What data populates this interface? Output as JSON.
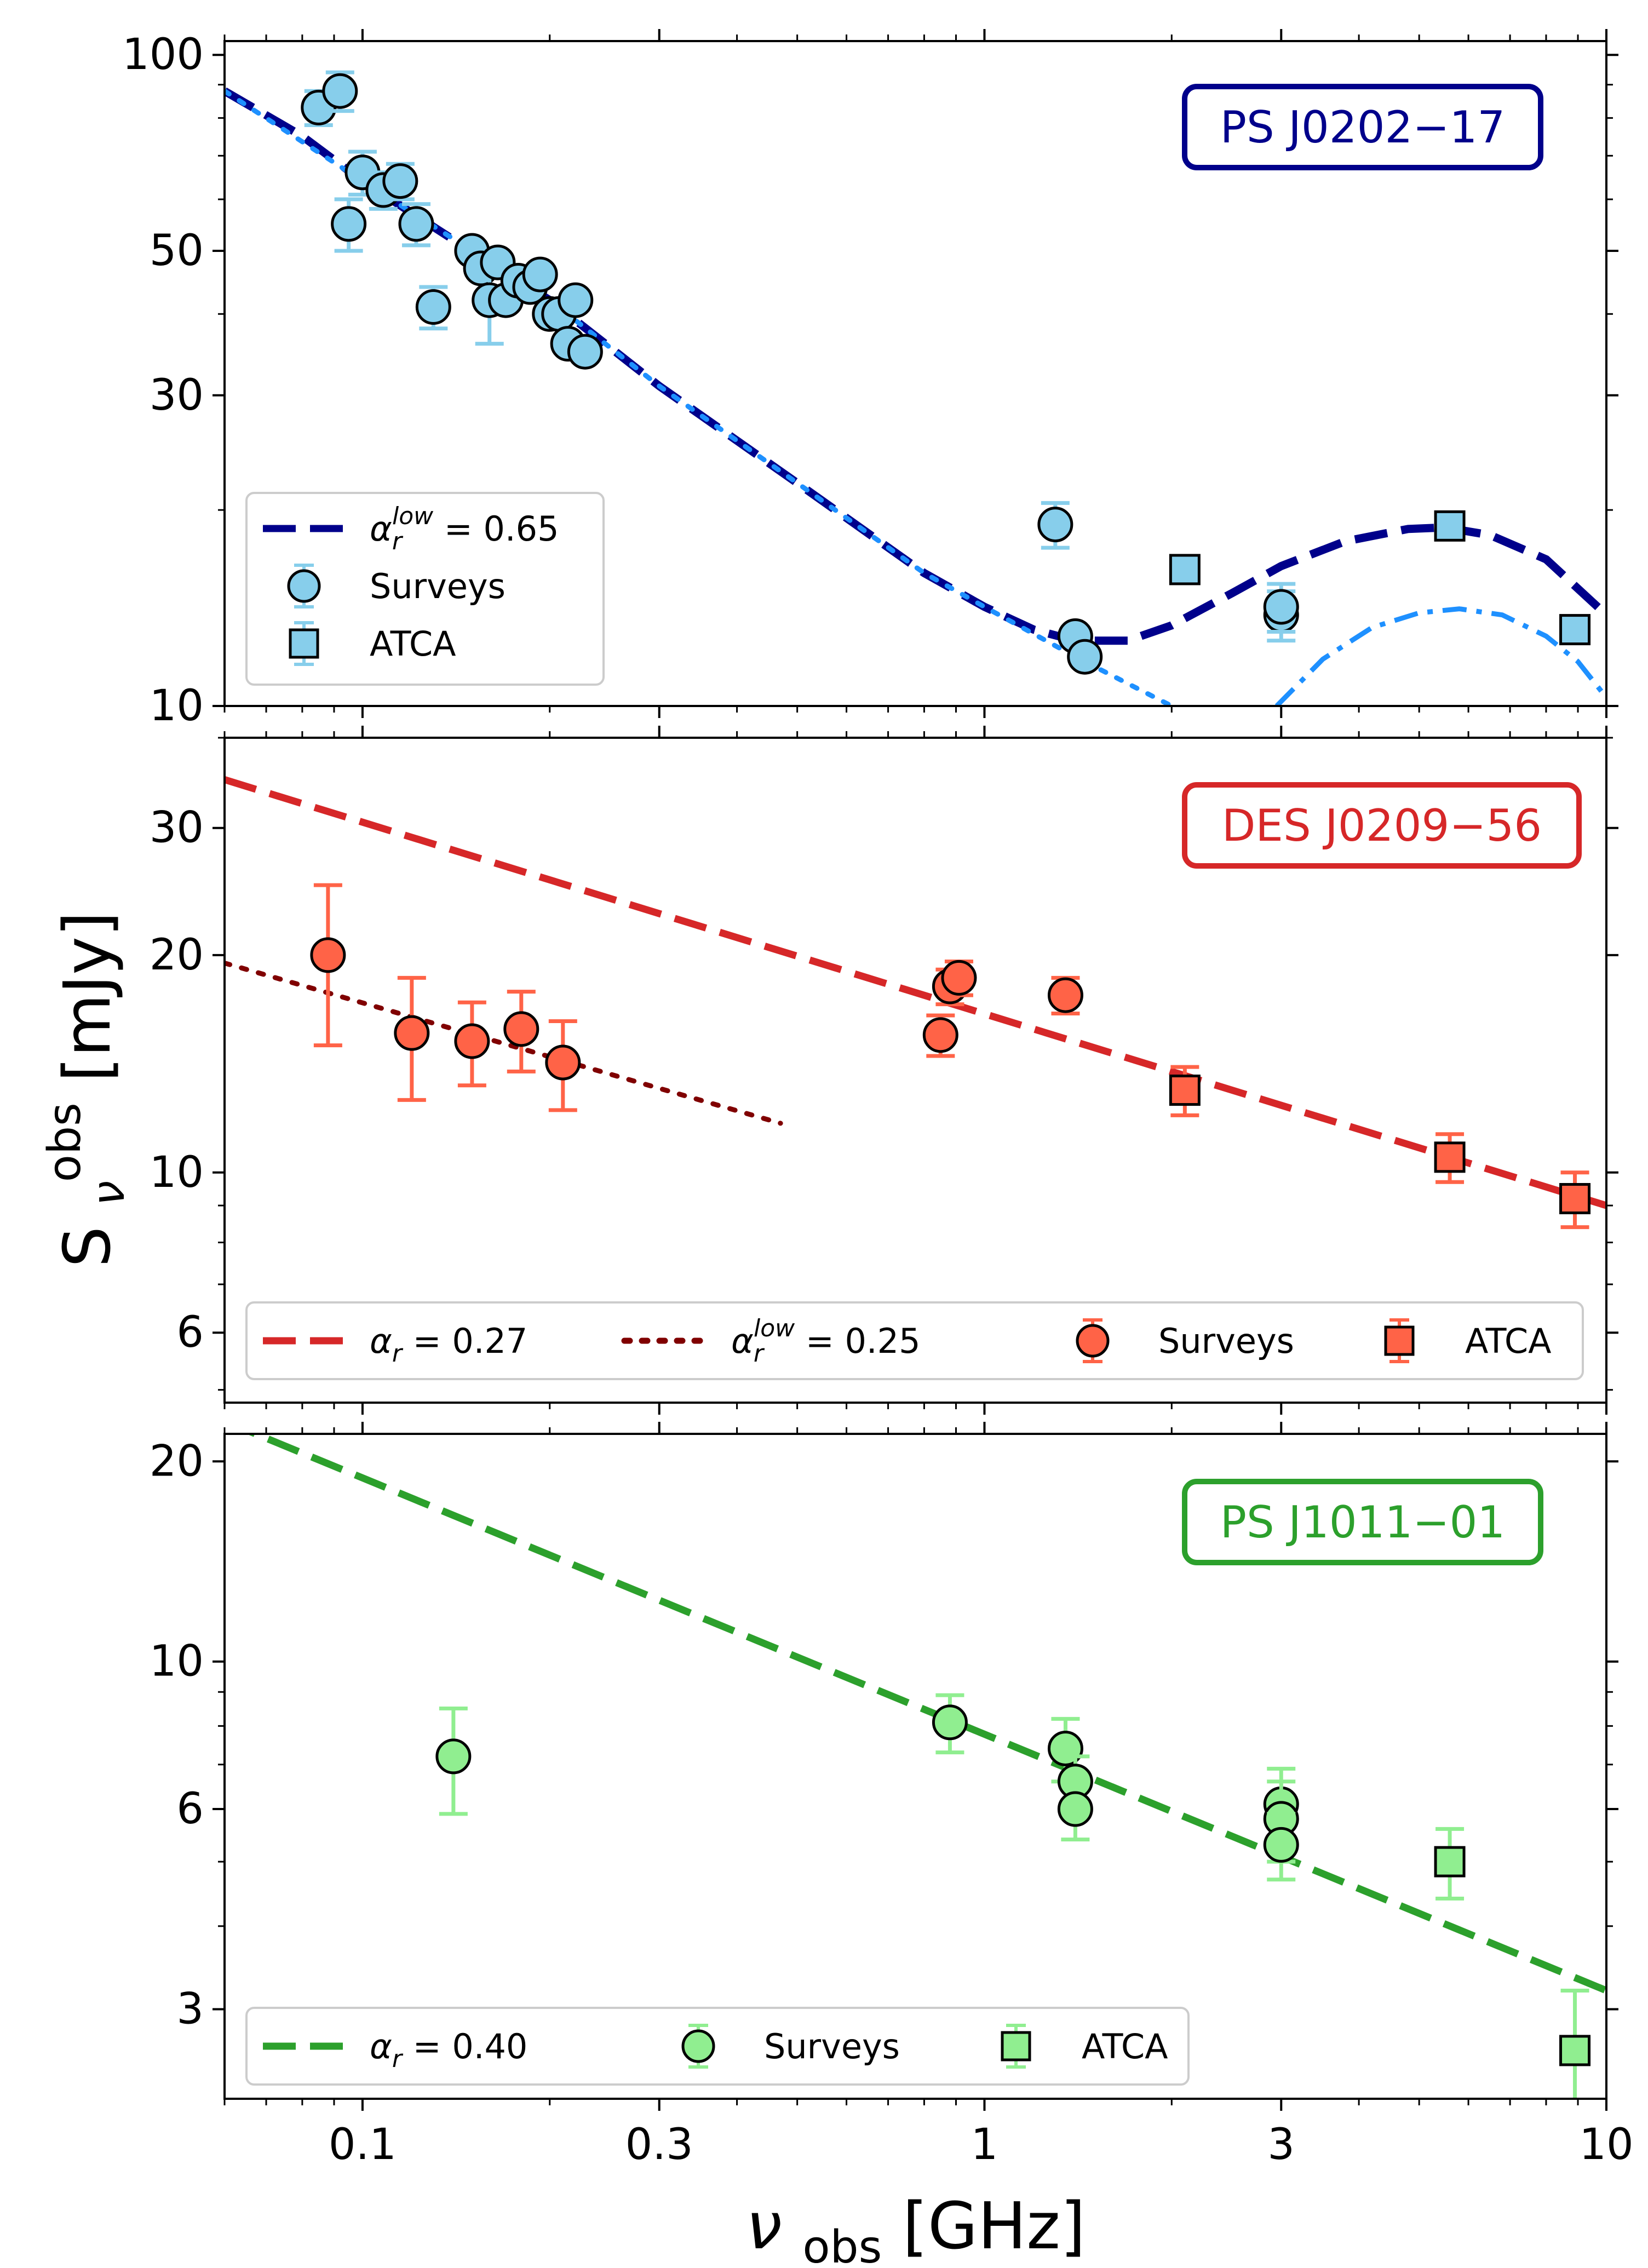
{
  "figure": {
    "ylabel_main": "S",
    "ylabel_sub": "ν",
    "ylabel_sup": "obs",
    "ylabel_unit": " [mJy]",
    "xlabel_main": "ν",
    "xlabel_sub": "obs",
    "xlabel_unit": " [GHz]",
    "x_scale": "log",
    "xlim": [
      0.06,
      10
    ],
    "xticks": [
      {
        "value": 0.1,
        "label": "0.1"
      },
      {
        "value": 0.3,
        "label": "0.3"
      },
      {
        "value": 1,
        "label": "1"
      },
      {
        "value": 3,
        "label": "3"
      },
      {
        "value": 10,
        "label": "10"
      }
    ]
  },
  "chart_data": [
    {
      "type": "scatter",
      "source_label": "PS J0202−17",
      "accent_color": "#00008b",
      "marker_color": "#87ceeb",
      "y_scale": "log",
      "ylim": [
        10,
        105
      ],
      "yticks": [
        {
          "value": 10,
          "label": "10"
        },
        {
          "value": 30,
          "label": "30"
        },
        {
          "value": 50,
          "label": "50"
        },
        {
          "value": 100,
          "label": "100"
        }
      ],
      "legend": {
        "placement": "lower-left",
        "entries": [
          {
            "kind": "line",
            "style": "dashed",
            "color": "#00008b",
            "math": "α",
            "sub": "r",
            "sup": "low",
            "text": " = 0.65"
          },
          {
            "kind": "circle",
            "color": "#87ceeb",
            "text": "Surveys"
          },
          {
            "kind": "square",
            "color": "#87ceeb",
            "text": "ATCA"
          }
        ]
      },
      "lines": [
        {
          "style": "dashed",
          "color": "#00008b",
          "x": [
            0.06,
            0.08,
            0.1,
            0.14,
            0.2,
            0.3,
            0.5,
            0.8,
            1.0,
            1.2,
            1.4,
            1.7,
            2.0,
            2.5,
            3.0,
            3.8,
            4.8,
            5.5,
            6.5,
            8.0,
            10.0
          ],
          "y": [
            88,
            75,
            64,
            52,
            42,
            31,
            22,
            16,
            14.2,
            13.1,
            12.6,
            12.6,
            13.3,
            14.9,
            16.4,
            17.9,
            18.7,
            18.8,
            18.3,
            16.8,
            13.8
          ]
        },
        {
          "style": "dotted",
          "color": "#1e90ff",
          "x": [
            0.06,
            0.1,
            0.2,
            0.3,
            0.5,
            0.8,
            1.0,
            1.4,
            2.0
          ],
          "y": [
            88,
            64,
            42,
            31,
            22,
            16,
            14.2,
            11.9,
            10
          ]
        },
        {
          "style": "dashdot",
          "color": "#1e90ff",
          "x": [
            2.95,
            3.5,
            4.2,
            5.0,
            5.8,
            6.8,
            8.0,
            9.0,
            10.0
          ],
          "y": [
            10,
            11.8,
            13.2,
            13.9,
            14.1,
            13.8,
            12.8,
            11.7,
            10.3
          ]
        }
      ],
      "series": [
        {
          "marker": "circle",
          "x": [
            0.085,
            0.092,
            0.095,
            0.1,
            0.108,
            0.115,
            0.122,
            0.13,
            0.15,
            0.155,
            0.16,
            0.165,
            0.17,
            0.178,
            0.186,
            0.193,
            0.2,
            0.207,
            0.214,
            0.22,
            0.228,
            1.3,
            1.4,
            1.45,
            3.0,
            3.0
          ],
          "y": [
            83,
            88,
            55,
            66,
            62,
            64,
            55,
            41,
            50,
            47,
            42,
            48,
            42,
            45,
            44,
            46,
            40,
            40,
            36,
            42,
            35,
            19,
            12.8,
            11.9,
            13.8,
            14.2
          ],
          "yerr": [
            5,
            6,
            5,
            5,
            4,
            4,
            4,
            3,
            0,
            0,
            6,
            0,
            0,
            0,
            0,
            0,
            0,
            0,
            0,
            0,
            0,
            1.5,
            0,
            0,
            1.2,
            1.2
          ]
        },
        {
          "marker": "square",
          "x": [
            2.1,
            5.6,
            8.9
          ],
          "y": [
            16.2,
            18.9,
            13.1
          ],
          "yerr": [
            0,
            0,
            0
          ]
        }
      ]
    },
    {
      "type": "scatter",
      "source_label": "DES J0209−56",
      "accent_color": "#d62728",
      "marker_color": "#ff6347",
      "y_scale": "log",
      "ylim": [
        4.8,
        40
      ],
      "yticks": [
        {
          "value": 6,
          "label": "6"
        },
        {
          "value": 10,
          "label": "10"
        },
        {
          "value": 20,
          "label": "20"
        },
        {
          "value": 30,
          "label": "30"
        }
      ],
      "legend": {
        "placement": "bottom",
        "entries": [
          {
            "kind": "line",
            "style": "dashed",
            "color": "#d62728",
            "math": "α",
            "sub": "r",
            "sup": "",
            "text": " = 0.27"
          },
          {
            "kind": "line",
            "style": "dotted",
            "color": "#800000",
            "math": "α",
            "sub": "r",
            "sup": "low",
            "text": " = 0.25"
          },
          {
            "kind": "circle",
            "color": "#ff6347",
            "text": "Surveys"
          },
          {
            "kind": "square",
            "color": "#ff6347",
            "text": "ATCA"
          }
        ]
      },
      "lines": [
        {
          "style": "dashed",
          "color": "#d62728",
          "x": [
            0.06,
            10.0
          ],
          "y": [
            35,
            9
          ]
        },
        {
          "style": "dotted",
          "color": "#800000",
          "x": [
            0.06,
            0.47
          ],
          "y": [
            19.5,
            11.7
          ]
        }
      ],
      "series": [
        {
          "marker": "circle",
          "x": [
            0.088,
            0.12,
            0.15,
            0.18,
            0.21,
            0.85,
            0.88,
            0.91,
            1.35
          ],
          "y": [
            20,
            15.6,
            15.2,
            15.8,
            14.2,
            15.5,
            18.1,
            18.6,
            17.6
          ],
          "yerr": [
            5,
            3,
            2,
            2,
            2,
            1,
            1,
            1,
            1
          ]
        },
        {
          "marker": "square",
          "x": [
            2.1,
            5.6,
            8.9
          ],
          "y": [
            13,
            10.5,
            9.2
          ],
          "yerr": [
            1,
            0.8,
            0.8
          ]
        }
      ]
    },
    {
      "type": "scatter",
      "source_label": "PS J1011−01",
      "accent_color": "#2ca02c",
      "marker_color": "#90ee90",
      "y_scale": "log",
      "ylim": [
        2.2,
        22
      ],
      "yticks": [
        {
          "value": 3,
          "label": "3"
        },
        {
          "value": 6,
          "label": "6"
        },
        {
          "value": 10,
          "label": "10"
        },
        {
          "value": 20,
          "label": "20"
        }
      ],
      "legend": {
        "placement": "lower-left",
        "entries": [
          {
            "kind": "line",
            "style": "dashed",
            "color": "#2ca02c",
            "math": "α",
            "sub": "r",
            "sup": "",
            "text": " = 0.40"
          },
          {
            "kind": "circle",
            "color": "#90ee90",
            "text": "Surveys"
          },
          {
            "kind": "square",
            "color": "#90ee90",
            "text": "ATCA"
          }
        ]
      },
      "lines": [
        {
          "style": "dashed",
          "color": "#2ca02c",
          "x": [
            0.06,
            10.0
          ],
          "y": [
            23,
            3.2
          ]
        }
      ],
      "series": [
        {
          "marker": "circle",
          "x": [
            0.14,
            0.88,
            1.35,
            1.4,
            1.4,
            3.0,
            3.0,
            3.0
          ],
          "y": [
            7.2,
            8.1,
            7.4,
            6.6,
            6.0,
            6.1,
            5.8,
            5.3
          ],
          "yerr": [
            1.3,
            0.8,
            0.8,
            0.6,
            0.6,
            0.8,
            0.8,
            0.6
          ]
        },
        {
          "marker": "square",
          "x": [
            5.6,
            8.9
          ],
          "y": [
            5.0,
            2.6
          ],
          "yerr": [
            0.6,
            0.6
          ]
        }
      ]
    }
  ]
}
